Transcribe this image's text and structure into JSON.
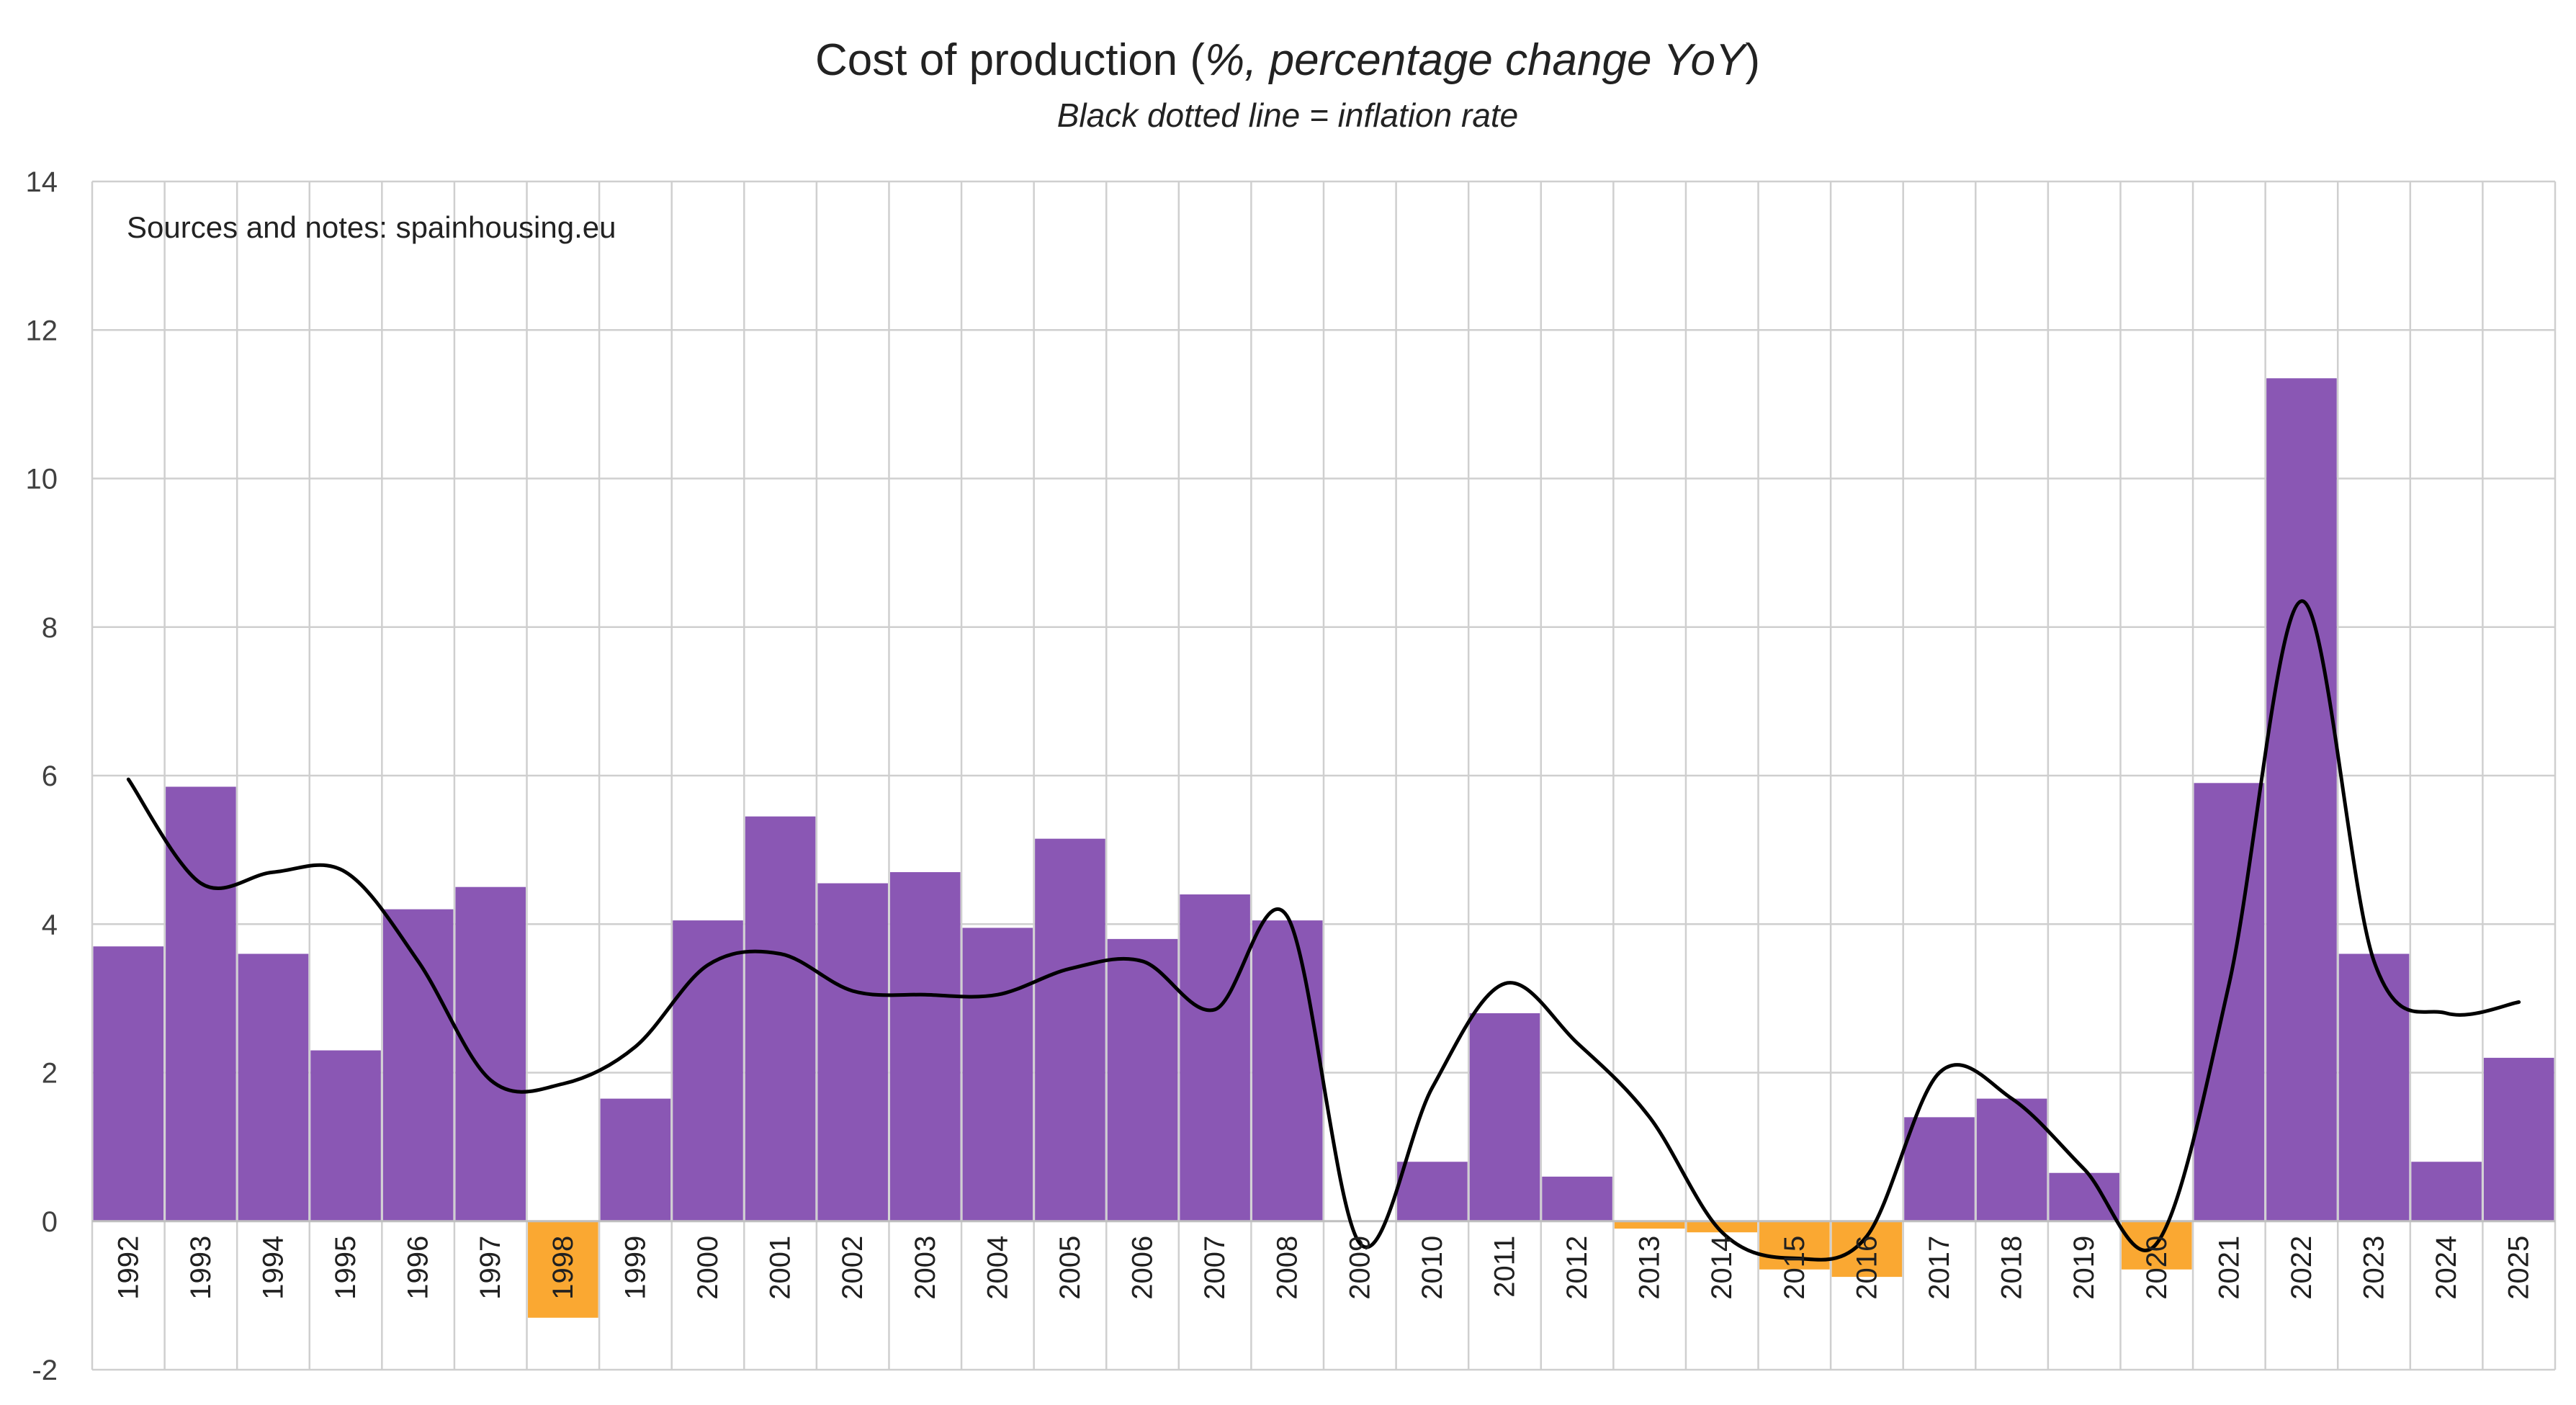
{
  "chart_data": {
    "type": "bar",
    "title_prefix": "Cost of production (",
    "title_italic": "%, percentage change YoY",
    "title_suffix": ")",
    "subtitle": "Black dotted line = inflation rate",
    "annotation": "Sources and notes: spainhousing.eu",
    "xlabel": "",
    "ylabel": "",
    "ylim": [
      -2,
      14
    ],
    "yticks": [
      -2,
      0,
      2,
      4,
      6,
      8,
      10,
      12,
      14
    ],
    "grid": true,
    "legend": "none",
    "categories": [
      "1992",
      "1993",
      "1994",
      "1995",
      "1996",
      "1997",
      "1998",
      "1999",
      "2000",
      "2001",
      "2002",
      "2003",
      "2004",
      "2005",
      "2006",
      "2007",
      "2008",
      "2009",
      "2010",
      "2011",
      "2012",
      "2013",
      "2014",
      "2015",
      "2016",
      "2017",
      "2018",
      "2019",
      "2020",
      "2021",
      "2022",
      "2023",
      "2024",
      "2025"
    ],
    "series": [
      {
        "type": "bar",
        "values": [
          3.7,
          5.85,
          3.6,
          2.3,
          4.2,
          4.5,
          -1.3,
          1.65,
          4.05,
          5.45,
          4.55,
          4.7,
          3.95,
          5.15,
          3.8,
          4.4,
          4.05,
          0.0,
          0.8,
          2.8,
          0.6,
          -0.1,
          -0.15,
          -0.65,
          -0.75,
          1.4,
          1.65,
          0.65,
          -0.65,
          5.9,
          11.35,
          3.6,
          0.8,
          2.2
        ],
        "colors": {
          "positive": "#8a57b4",
          "negative": "#faa832"
        }
      },
      {
        "type": "line",
        "values": [
          5.95,
          4.55,
          4.7,
          4.7,
          3.5,
          1.9,
          1.85,
          2.35,
          3.45,
          3.6,
          3.1,
          3.05,
          3.05,
          3.4,
          3.5,
          2.85,
          4.1,
          -0.3,
          1.8,
          3.2,
          2.4,
          1.4,
          -0.15,
          -0.5,
          -0.2,
          2.0,
          1.65,
          0.7,
          -0.3,
          3.2,
          8.35,
          3.5,
          2.8,
          2.95
        ],
        "color": "#000000"
      }
    ]
  }
}
